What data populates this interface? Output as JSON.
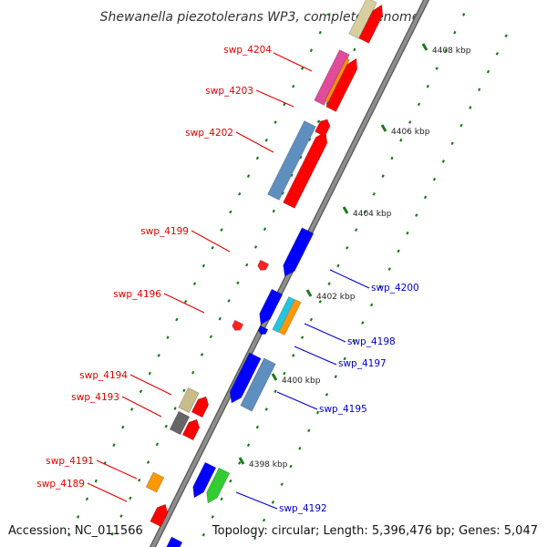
{
  "title": "Shewanella piezotolerans WP3, complete genome",
  "footer": {
    "accession": "Accession: NC_011566",
    "summary": "Topology: circular; Length: 5,396,476 bp; Genes: 5,047"
  },
  "colors": {
    "backbone": "#7a7a7a",
    "reverse_label": "#e00000",
    "forward_label": "#0000cc",
    "tick": "#1a7a1a"
  },
  "kbp_ticks": [
    {
      "label": "4398 kbp"
    },
    {
      "label": "4400 kbp"
    },
    {
      "label": "4402 kbp"
    },
    {
      "label": "4404 kbp"
    },
    {
      "label": "4406 kbp"
    },
    {
      "label": "4408 kbp"
    }
  ],
  "gene_labels": [
    {
      "name": "swp_4204",
      "strand": "reverse"
    },
    {
      "name": "swp_4203",
      "strand": "reverse"
    },
    {
      "name": "swp_4202",
      "strand": "reverse"
    },
    {
      "name": "swp_4199",
      "strand": "reverse"
    },
    {
      "name": "swp_4196",
      "strand": "reverse"
    },
    {
      "name": "swp_4194",
      "strand": "reverse"
    },
    {
      "name": "swp_4193",
      "strand": "reverse"
    },
    {
      "name": "swp_4191",
      "strand": "reverse"
    },
    {
      "name": "swp_4189",
      "strand": "reverse"
    },
    {
      "name": "swp_4200",
      "strand": "forward"
    },
    {
      "name": "swp_4198",
      "strand": "forward"
    },
    {
      "name": "swp_4197",
      "strand": "forward"
    },
    {
      "name": "swp_4195",
      "strand": "forward"
    },
    {
      "name": "swp_4192",
      "strand": "forward"
    }
  ]
}
